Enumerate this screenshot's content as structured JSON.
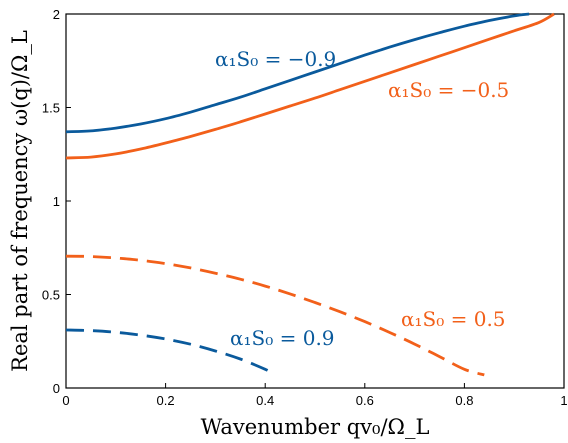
{
  "chart_data": {
    "type": "line",
    "xlabel": "Wavenumber qv₀/Ω_L",
    "ylabel": "Real part of frequency ω(q)/Ω_L",
    "xlim": [
      0,
      1
    ],
    "ylim": [
      0,
      2
    ],
    "grid": false,
    "x_ticks": [
      "0",
      "0.2",
      "0.4",
      "0.6",
      "0.8",
      "1"
    ],
    "y_ticks": [
      "0",
      "0.5",
      "1",
      "1.5",
      "2"
    ],
    "colors": {
      "blue": "#0a5a9c",
      "orange": "#f2601a"
    },
    "series": [
      {
        "name": "α₁S₀ = −0.9",
        "color": "#0a5a9c",
        "dash": "solid",
        "x": [
          0,
          0.05,
          0.1,
          0.15,
          0.2,
          0.25,
          0.3,
          0.35,
          0.4,
          0.45,
          0.5,
          0.55,
          0.6,
          0.65,
          0.7,
          0.75,
          0.8,
          0.85,
          0.9,
          0.93
        ],
        "y": [
          1.37,
          1.375,
          1.39,
          1.412,
          1.44,
          1.475,
          1.515,
          1.555,
          1.6,
          1.645,
          1.69,
          1.735,
          1.78,
          1.823,
          1.863,
          1.9,
          1.935,
          1.965,
          1.99,
          2.0
        ]
      },
      {
        "name": "α₁S₀ = −0.5",
        "color": "#f2601a",
        "dash": "solid",
        "x": [
          0,
          0.05,
          0.1,
          0.15,
          0.2,
          0.25,
          0.3,
          0.35,
          0.4,
          0.45,
          0.5,
          0.55,
          0.6,
          0.65,
          0.7,
          0.75,
          0.8,
          0.85,
          0.9,
          0.95,
          0.98
        ],
        "y": [
          1.23,
          1.235,
          1.252,
          1.278,
          1.31,
          1.345,
          1.383,
          1.423,
          1.465,
          1.508,
          1.55,
          1.595,
          1.64,
          1.685,
          1.73,
          1.775,
          1.82,
          1.865,
          1.91,
          1.955,
          2.0
        ]
      },
      {
        "name": "α₁S₀ = 0.5",
        "color": "#f2601a",
        "dash": "dashed",
        "x": [
          0,
          0.05,
          0.1,
          0.15,
          0.2,
          0.25,
          0.3,
          0.35,
          0.4,
          0.45,
          0.5,
          0.55,
          0.6,
          0.65,
          0.7,
          0.75,
          0.8,
          0.84
        ],
        "y": [
          0.705,
          0.703,
          0.695,
          0.683,
          0.665,
          0.642,
          0.614,
          0.582,
          0.545,
          0.503,
          0.457,
          0.408,
          0.355,
          0.297,
          0.235,
          0.168,
          0.1,
          0.07
        ]
      },
      {
        "name": "α₁S₀ = 0.9",
        "color": "#0a5a9c",
        "dash": "dashed",
        "x": [
          0,
          0.05,
          0.1,
          0.15,
          0.2,
          0.25,
          0.3,
          0.35,
          0.4,
          0.42
        ],
        "y": [
          0.31,
          0.307,
          0.298,
          0.283,
          0.262,
          0.234,
          0.198,
          0.155,
          0.1,
          0.07
        ]
      }
    ],
    "annotations": [
      {
        "text": "α₁S₀ = −0.9",
        "series": 0
      },
      {
        "text": "α₁S₀ = −0.5",
        "series": 1
      },
      {
        "text": "α₁S₀ = 0.5",
        "series": 2
      },
      {
        "text": "α₁S₀ = 0.9",
        "series": 3
      }
    ]
  }
}
